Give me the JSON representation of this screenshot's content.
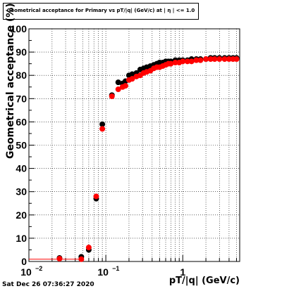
{
  "chart_data": {
    "type": "scatter",
    "title": "Geometrical acceptance for Primary vs pT/|q| (GeV/c) at | η | <= 1.0",
    "xlabel": "pT/|q| (GeV/c)",
    "ylabel": "Geometrical acceptance (%)",
    "xscale": "log",
    "xlim": [
      0.01,
      5.5
    ],
    "ylim": [
      0,
      100
    ],
    "grid": true,
    "y_ticks": [
      "0",
      "10",
      "20",
      "30",
      "40",
      "50",
      "60",
      "70",
      "80",
      "90",
      "100"
    ],
    "x_ticks": [
      {
        "base": "10",
        "exp": "−2",
        "value": 0.01
      },
      {
        "base": "10",
        "exp": "−1",
        "value": 0.1
      },
      {
        "base": "1",
        "exp": "",
        "value": 1
      }
    ],
    "series": [
      {
        "color": "#000000",
        "x": [
          0.025,
          0.048,
          0.06,
          0.075,
          0.09,
          0.12,
          0.145,
          0.165,
          0.18,
          0.2,
          0.22,
          0.25,
          0.28,
          0.31,
          0.34,
          0.38,
          0.42,
          0.46,
          0.5,
          0.55,
          0.6,
          0.65,
          0.7,
          0.8,
          0.9,
          1.0,
          1.15,
          1.3,
          1.5,
          1.7,
          2.0,
          2.3,
          2.6,
          3.0,
          3.5,
          4.0,
          4.5,
          5.0
        ],
        "y": [
          1.5,
          2,
          5,
          27,
          59,
          71.5,
          77,
          76.5,
          77.5,
          80,
          80.5,
          81,
          82.5,
          83,
          83.5,
          84,
          84.5,
          85,
          85.5,
          85.5,
          86,
          86,
          86,
          86.5,
          86.5,
          86.5,
          86.5,
          87,
          87,
          87,
          87,
          87.5,
          87.5,
          87.5,
          87.5,
          87.5,
          87.5,
          87.5
        ]
      },
      {
        "color": "#ff0000",
        "x": [
          0.025,
          0.048,
          0.06,
          0.075,
          0.09,
          0.12,
          0.145,
          0.165,
          0.18,
          0.2,
          0.22,
          0.25,
          0.28,
          0.31,
          0.34,
          0.38,
          0.42,
          0.46,
          0.5,
          0.55,
          0.6,
          0.65,
          0.7,
          0.8,
          0.9,
          1.0,
          1.15,
          1.3,
          1.5,
          1.7,
          2.0,
          2.3,
          2.6,
          3.0,
          3.5,
          4.0,
          4.5,
          5.0
        ],
        "y": [
          1.2,
          1,
          6,
          28,
          57,
          71,
          74,
          75,
          75.5,
          78,
          78.5,
          79.5,
          80,
          81,
          81.5,
          82,
          83,
          83.5,
          83.5,
          84,
          84.5,
          85,
          85,
          85.5,
          85.5,
          86,
          86,
          86,
          86.5,
          86.5,
          87,
          87,
          87,
          87,
          87,
          87,
          87,
          87
        ]
      }
    ]
  },
  "footer": {
    "timestamp": "Sat Dec 26 07:36:27 2020"
  }
}
